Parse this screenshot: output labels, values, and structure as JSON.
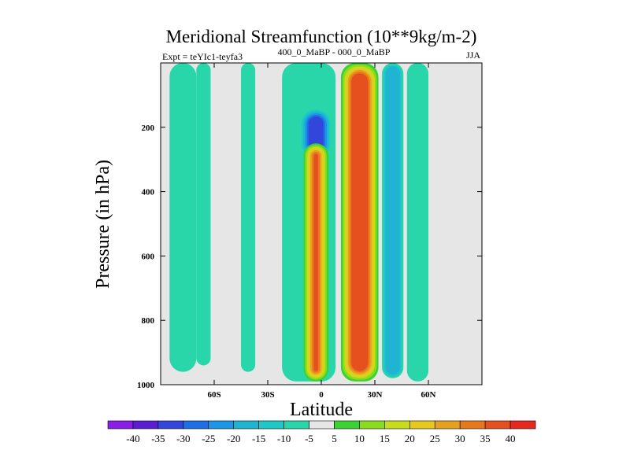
{
  "chart_data": {
    "type": "heatmap",
    "title": "Meridional Streamfunction (10**9kg/m-2)",
    "experiment_label": "Expt = teYIc1-teyfa3",
    "period_label": "400_0_MaBP - 000_0_MaBP",
    "season_label": "JJA",
    "xlabel": "Latitude",
    "ylabel": "Pressure (in hPa)",
    "xlim": [
      -90,
      90
    ],
    "ylim": [
      0,
      1000
    ],
    "y_inverted": true,
    "x_ticks": [
      {
        "value": -60,
        "label": "60S"
      },
      {
        "value": -30,
        "label": "30S"
      },
      {
        "value": 0,
        "label": "0"
      },
      {
        "value": 30,
        "label": "30N"
      },
      {
        "value": 60,
        "label": "60N"
      }
    ],
    "y_ticks": [
      {
        "value": 200,
        "label": "200"
      },
      {
        "value": 400,
        "label": "400"
      },
      {
        "value": 600,
        "label": "600"
      },
      {
        "value": 800,
        "label": "800"
      },
      {
        "value": 1000,
        "label": "1000"
      }
    ],
    "colorbar": {
      "labels": [
        "-40",
        "-35",
        "-30",
        "-25",
        "-20",
        "-15",
        "-10",
        "-5",
        "5",
        "10",
        "15",
        "20",
        "25",
        "30",
        "35",
        "40"
      ],
      "colors": [
        "#8a1ee6",
        "#5a1ed2",
        "#3246dc",
        "#1e6ee6",
        "#1e96e6",
        "#1eb4d2",
        "#1ec8c8",
        "#28d6aa",
        "#e6e6e6",
        "#3cd232",
        "#8cdc1e",
        "#c8dc1e",
        "#e6c81e",
        "#e6a01e",
        "#e6781e",
        "#e6501e",
        "#e6281e"
      ]
    },
    "regions": [
      {
        "name": "sh-polar-cell",
        "lat": [
          -85,
          -70
        ],
        "p": [
          0,
          960
        ],
        "value": -7
      },
      {
        "name": "sh-ferrel-band",
        "lat": [
          -70,
          -62
        ],
        "p": [
          0,
          940
        ],
        "value": -7
      },
      {
        "name": "sh-ferrel-band-2",
        "lat": [
          -45,
          -37
        ],
        "p": [
          0,
          960
        ],
        "value": -7
      },
      {
        "name": "southern-hadley-negative",
        "lat": [
          -22,
          8
        ],
        "p": [
          0,
          990
        ],
        "value": -10
      },
      {
        "name": "upper-negative-core",
        "lat": [
          -12,
          6
        ],
        "p": [
          140,
          300
        ],
        "value": -35
      },
      {
        "name": "southern-hadley-positive",
        "lat": [
          -10,
          4
        ],
        "p": [
          250,
          990
        ],
        "value": 40
      },
      {
        "name": "northern-hadley-positive",
        "lat": [
          11,
          32
        ],
        "p": [
          0,
          990
        ],
        "value": 40
      },
      {
        "name": "nh-negative-band",
        "lat": [
          34,
          46
        ],
        "p": [
          0,
          980
        ],
        "value": -20
      },
      {
        "name": "nh-negative-band-2",
        "lat": [
          48,
          60
        ],
        "p": [
          0,
          990
        ],
        "value": -10
      }
    ]
  }
}
